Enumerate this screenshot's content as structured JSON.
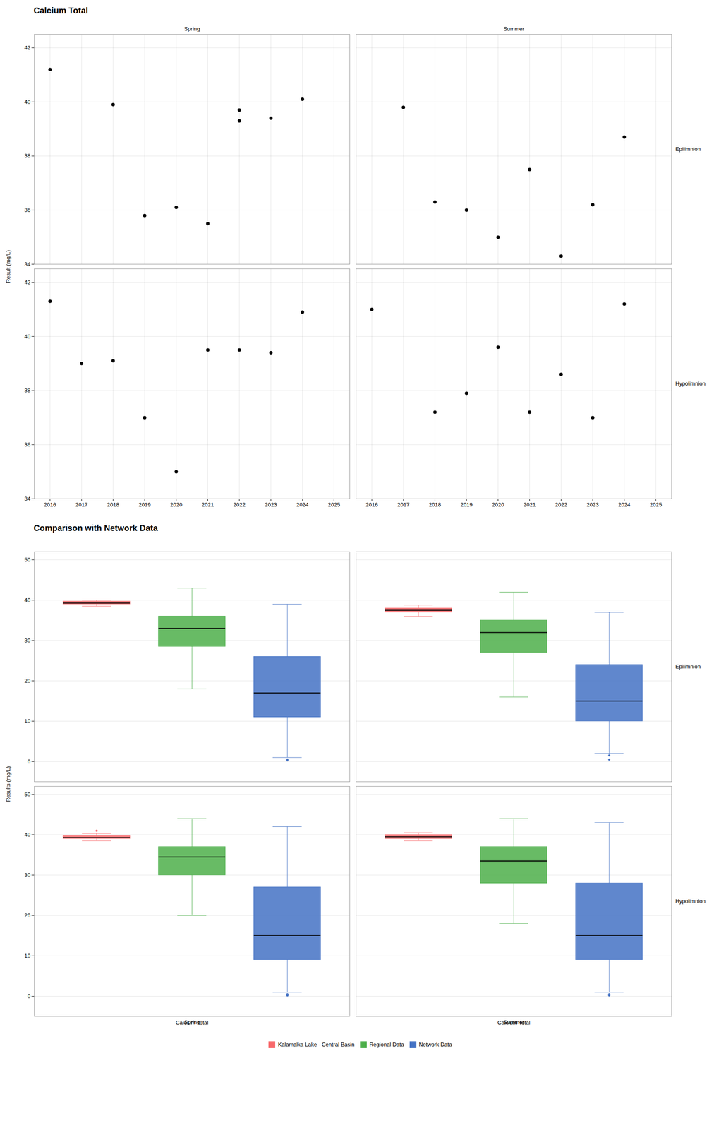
{
  "chart_data": [
    {
      "type": "scatter",
      "title": "Calcium Total",
      "ylabel": "Result (mg/L)",
      "columns": [
        "Spring",
        "Summer"
      ],
      "rows": [
        "Epilimnion",
        "Hypolimnion"
      ],
      "color": "black",
      "panels": [
        {
          "column": "Spring",
          "row": "Epilimnion",
          "x": [
            2016,
            2018,
            2019,
            2020,
            2021,
            2022,
            2022,
            2023,
            2024
          ],
          "y": [
            41.2,
            39.9,
            35.8,
            36.1,
            35.5,
            39.3,
            39.7,
            39.4,
            40.1
          ]
        },
        {
          "column": "Summer",
          "row": "Epilimnion",
          "x": [
            2017,
            2018,
            2019,
            2020,
            2021,
            2022,
            2023,
            2024
          ],
          "y": [
            39.8,
            36.3,
            36.0,
            35.0,
            37.5,
            34.3,
            36.2,
            38.7
          ]
        },
        {
          "column": "Spring",
          "row": "Hypolimnion",
          "x": [
            2016,
            2017,
            2018,
            2019,
            2020,
            2021,
            2022,
            2023,
            2024
          ],
          "y": [
            41.3,
            39.0,
            39.1,
            37.0,
            35.0,
            39.5,
            39.5,
            39.4,
            40.9
          ]
        },
        {
          "column": "Summer",
          "row": "Hypolimnion",
          "x": [
            2016,
            2018,
            2019,
            2020,
            2021,
            2022,
            2023,
            2024
          ],
          "y": [
            41.0,
            37.2,
            37.9,
            39.6,
            37.2,
            38.6,
            37.0,
            41.2
          ]
        }
      ],
      "xlim": [
        2015.5,
        2025.5
      ],
      "xticks": [
        2016,
        2017,
        2018,
        2019,
        2020,
        2021,
        2022,
        2023,
        2024,
        2025
      ],
      "ylim": [
        34,
        42.5
      ],
      "yticks": [
        34,
        36,
        38,
        40,
        42
      ],
      "grid": true
    },
    {
      "type": "box",
      "title": "Comparison with Network Data",
      "ylabel": "Results (mg/L)",
      "xlabel": "Calcium Total",
      "columns": [
        "Spring",
        "Summer"
      ],
      "rows": [
        "Epilimnion",
        "Hypolimnion"
      ],
      "series": [
        {
          "name": "Kalamalka Lake - Central Basin",
          "color": "#F8696B",
          "panels": [
            {
              "column": "Spring",
              "row": "Epilimnion",
              "median": 39.3,
              "q1": 39.0,
              "q3": 39.7,
              "whislo": 38.5,
              "whishi": 40.0,
              "fliers": []
            },
            {
              "column": "Summer",
              "row": "Epilimnion",
              "median": 37.5,
              "q1": 37.0,
              "q3": 38.0,
              "whislo": 36.0,
              "whishi": 38.8,
              "fliers": []
            },
            {
              "column": "Spring",
              "row": "Hypolimnion",
              "median": 39.3,
              "q1": 39.0,
              "q3": 39.7,
              "whislo": 38.5,
              "whishi": 40.3,
              "fliers": [
                41.0
              ]
            },
            {
              "column": "Summer",
              "row": "Hypolimnion",
              "median": 39.5,
              "q1": 39.0,
              "q3": 40.0,
              "whislo": 38.5,
              "whishi": 40.5,
              "fliers": []
            }
          ]
        },
        {
          "name": "Regional Data",
          "color": "#4DAF4A",
          "panels": [
            {
              "column": "Spring",
              "row": "Epilimnion",
              "median": 33.0,
              "q1": 28.5,
              "q3": 36.0,
              "whislo": 18.0,
              "whishi": 43.0,
              "fliers": []
            },
            {
              "column": "Summer",
              "row": "Epilimnion",
              "median": 32.0,
              "q1": 27.0,
              "q3": 35.0,
              "whislo": 16.0,
              "whishi": 42.0,
              "fliers": []
            },
            {
              "column": "Spring",
              "row": "Hypolimnion",
              "median": 34.5,
              "q1": 30.0,
              "q3": 37.0,
              "whislo": 20.0,
              "whishi": 44.0,
              "fliers": []
            },
            {
              "column": "Summer",
              "row": "Hypolimnion",
              "median": 33.5,
              "q1": 28.0,
              "q3": 37.0,
              "whislo": 18.0,
              "whishi": 44.0,
              "fliers": []
            }
          ]
        },
        {
          "name": "Network Data",
          "color": "#4472C4",
          "panels": [
            {
              "column": "Spring",
              "row": "Epilimnion",
              "median": 17.0,
              "q1": 11.0,
              "q3": 26.0,
              "whislo": 1.0,
              "whishi": 39.0,
              "fliers": [
                0.5,
                0.3
              ]
            },
            {
              "column": "Summer",
              "row": "Epilimnion",
              "median": 15.0,
              "q1": 10.0,
              "q3": 24.0,
              "whislo": 2.0,
              "whishi": 37.0,
              "fliers": [
                0.5,
                1.5
              ]
            },
            {
              "column": "Spring",
              "row": "Hypolimnion",
              "median": 15.0,
              "q1": 9.0,
              "q3": 27.0,
              "whislo": 1.0,
              "whishi": 42.0,
              "fliers": [
                0.2,
                0.4,
                0.3,
                0.5
              ]
            },
            {
              "column": "Summer",
              "row": "Hypolimnion",
              "median": 15.0,
              "q1": 9.0,
              "q3": 28.0,
              "whislo": 1.0,
              "whishi": 43.0,
              "fliers": [
                0.2,
                0.3,
                0.5
              ]
            }
          ]
        }
      ],
      "ylim": [
        -5,
        52
      ],
      "yticks": [
        0,
        10,
        20,
        30,
        40,
        50
      ],
      "grid": true,
      "legend": "bottom"
    }
  ]
}
